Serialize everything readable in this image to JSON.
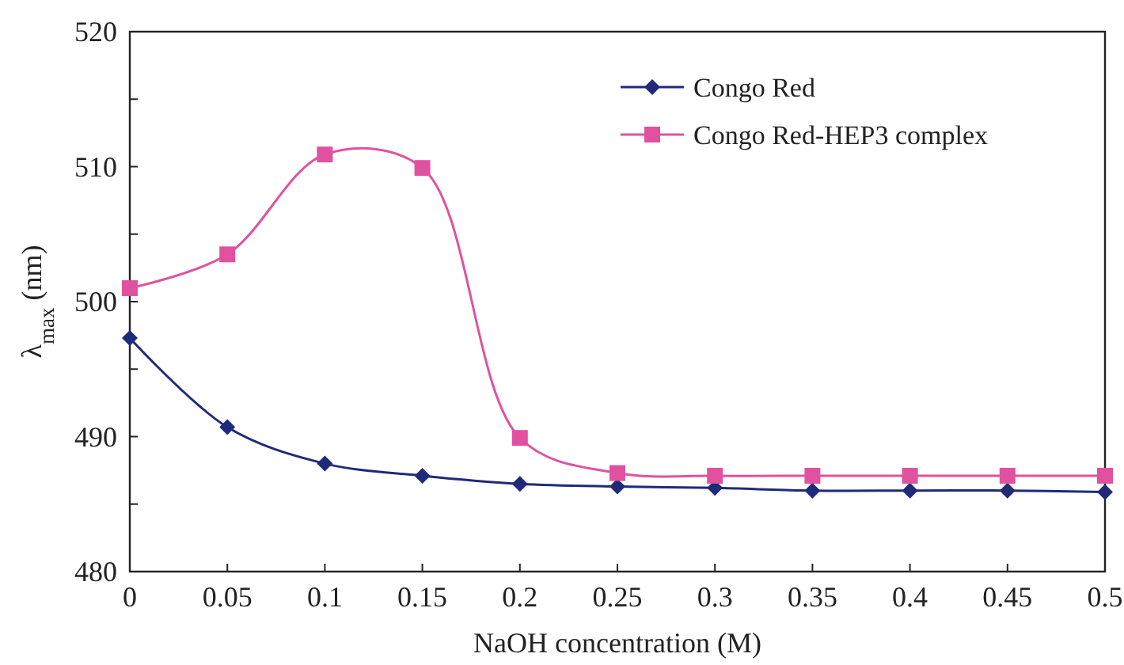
{
  "chart_data": {
    "type": "line",
    "xlabel": "NaOH concentration (M)",
    "ylabel": "λ$_{max}$ (nm)",
    "x": [
      0,
      0.05,
      0.1,
      0.15,
      0.2,
      0.25,
      0.3,
      0.35,
      0.4,
      0.45,
      0.5
    ],
    "series": [
      {
        "name": "Congo Red",
        "color": "#1f2a7a",
        "marker": "diamond",
        "values": [
          497.3,
          490.7,
          488.0,
          487.1,
          486.5,
          486.3,
          486.2,
          486.0,
          486.0,
          486.0,
          485.9
        ]
      },
      {
        "name": "Congo Red-HEP3 complex",
        "color": "#e0529f",
        "marker": "square",
        "values": [
          501.0,
          503.5,
          510.9,
          509.9,
          489.9,
          487.3,
          487.1,
          487.1,
          487.1,
          487.1,
          487.1
        ]
      }
    ],
    "xlim": [
      0,
      0.5
    ],
    "xticks": [
      0,
      0.05,
      0.1,
      0.15,
      0.2,
      0.25,
      0.3,
      0.35,
      0.4,
      0.45,
      0.5
    ],
    "ylim": [
      480,
      520
    ],
    "yticks": [
      480,
      {
        "value": 485,
        "label": null
      },
      490,
      {
        "value": 495,
        "label": null
      },
      500,
      {
        "value": 505,
        "label": null
      },
      510,
      {
        "value": 515,
        "label": null
      },
      520
    ],
    "legend": "top right",
    "grid": false
  }
}
